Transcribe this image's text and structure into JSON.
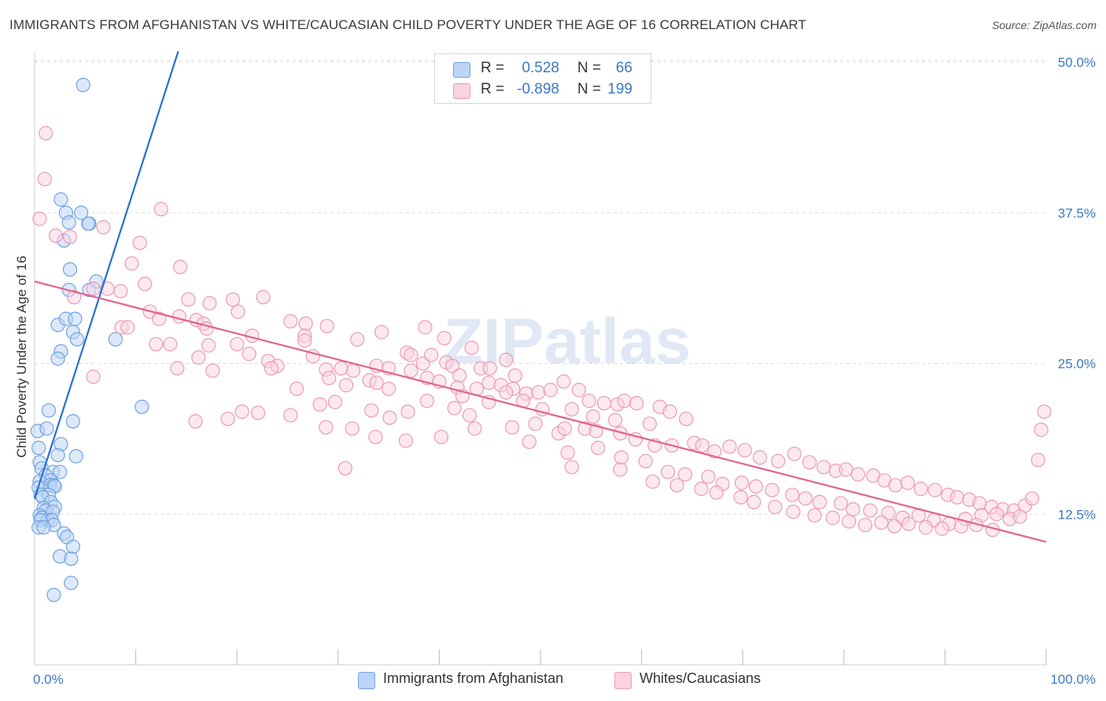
{
  "title": "IMMIGRANTS FROM AFGHANISTAN VS WHITE/CAUCASIAN CHILD POVERTY UNDER THE AGE OF 16 CORRELATION CHART",
  "source": "Source: ZipAtlas.com",
  "watermark": "ZIPatlas",
  "colors": {
    "blue": "#6fa3e3",
    "blue_fill": "#bcd4f5",
    "blue_line": "#2470d1",
    "pink": "#ec9ab5",
    "pink_fill": "#f9d3df",
    "pink_line": "#e2628f",
    "value_text": "#3b78c6",
    "grid": "#dddddd"
  },
  "stats": [
    {
      "r_label": "R =",
      "r_value": "0.528",
      "n_label": "N =",
      "n_value": "66",
      "series": "blue"
    },
    {
      "r_label": "R =",
      "r_value": "-0.898",
      "n_label": "N =",
      "n_value": "199",
      "series": "pink"
    }
  ],
  "legend": [
    {
      "label": "Immigrants from Afghanistan",
      "series": "blue"
    },
    {
      "label": "Whites/Caucasians",
      "series": "pink"
    }
  ],
  "chart_data": {
    "type": "scatter",
    "xlabel": "",
    "ylabel": "Child Poverty Under the Age of 16",
    "xlim": [
      0,
      100
    ],
    "ylim": [
      0,
      52
    ],
    "x_tick_labels": [
      {
        "value": 0,
        "label": "0.0%"
      },
      {
        "value": 100,
        "label": "100.0%"
      }
    ],
    "x_minor_ticks": [
      10,
      20,
      30,
      40,
      50,
      60,
      70,
      80,
      90,
      100
    ],
    "y_ticks": [
      {
        "value": 12.5,
        "label": "12.5%"
      },
      {
        "value": 25.0,
        "label": "25.0%"
      },
      {
        "value": 37.5,
        "label": "37.5%"
      },
      {
        "value": 50.0,
        "label": "50.0%"
      }
    ],
    "grid": true,
    "legend_position": "bottom",
    "series": [
      {
        "name": "Immigrants from Afghanistan",
        "color": "blue",
        "trend": {
          "x": [
            0,
            14.2
          ],
          "y": [
            13.8,
            50.9
          ]
        },
        "points": [
          [
            4.8,
            48.1
          ],
          [
            2.6,
            38.6
          ],
          [
            3.1,
            37.5
          ],
          [
            4.6,
            37.5
          ],
          [
            5.4,
            36.6
          ],
          [
            3.4,
            36.7
          ],
          [
            5.3,
            36.6
          ],
          [
            2.9,
            35.2
          ],
          [
            3.5,
            32.8
          ],
          [
            6.1,
            31.8
          ],
          [
            5.4,
            31.1
          ],
          [
            3.4,
            31.1
          ],
          [
            2.3,
            28.2
          ],
          [
            3.1,
            28.7
          ],
          [
            3.8,
            27.6
          ],
          [
            4.0,
            28.7
          ],
          [
            4.2,
            27.0
          ],
          [
            8.0,
            27.0
          ],
          [
            2.6,
            26.0
          ],
          [
            2.3,
            25.4
          ],
          [
            1.4,
            21.1
          ],
          [
            10.6,
            21.4
          ],
          [
            3.8,
            20.2
          ],
          [
            0.3,
            19.4
          ],
          [
            1.2,
            19.6
          ],
          [
            2.6,
            18.3
          ],
          [
            0.4,
            18.0
          ],
          [
            2.3,
            17.4
          ],
          [
            4.1,
            17.3
          ],
          [
            0.5,
            16.8
          ],
          [
            0.7,
            16.3
          ],
          [
            1.8,
            16.0
          ],
          [
            2.5,
            16.0
          ],
          [
            1.1,
            15.7
          ],
          [
            1.6,
            15.3
          ],
          [
            0.5,
            15.2
          ],
          [
            1.5,
            14.9
          ],
          [
            1.9,
            14.9
          ],
          [
            2.0,
            14.8
          ],
          [
            0.4,
            14.7
          ],
          [
            0.6,
            14.1
          ],
          [
            1.4,
            14.1
          ],
          [
            0.8,
            13.9
          ],
          [
            1.6,
            13.5
          ],
          [
            0.9,
            13.0
          ],
          [
            2.0,
            13.1
          ],
          [
            1.1,
            12.8
          ],
          [
            1.8,
            12.7
          ],
          [
            0.5,
            12.4
          ],
          [
            0.7,
            12.2
          ],
          [
            1.3,
            12.0
          ],
          [
            1.7,
            12.0
          ],
          [
            0.6,
            12.0
          ],
          [
            1.9,
            11.6
          ],
          [
            0.4,
            11.4
          ],
          [
            0.9,
            11.4
          ],
          [
            2.9,
            10.9
          ],
          [
            3.2,
            10.6
          ],
          [
            3.8,
            9.8
          ],
          [
            2.5,
            9.0
          ],
          [
            3.6,
            8.8
          ],
          [
            3.6,
            6.8
          ],
          [
            1.9,
            5.8
          ]
        ]
      },
      {
        "name": "Whites/Caucasians",
        "color": "pink",
        "trend": {
          "x": [
            0,
            100
          ],
          "y": [
            31.8,
            10.2
          ]
        },
        "points": [
          [
            1.1,
            44.1
          ],
          [
            1.0,
            40.3
          ],
          [
            0.5,
            37.0
          ],
          [
            6.8,
            36.3
          ],
          [
            2.1,
            35.6
          ],
          [
            3.5,
            35.5
          ],
          [
            10.4,
            35.0
          ],
          [
            12.5,
            37.8
          ],
          [
            9.6,
            33.3
          ],
          [
            14.4,
            33.0
          ],
          [
            5.8,
            31.2
          ],
          [
            7.2,
            31.2
          ],
          [
            8.5,
            31.0
          ],
          [
            10.9,
            31.6
          ],
          [
            3.9,
            30.5
          ],
          [
            15.2,
            30.3
          ],
          [
            17.3,
            30.0
          ],
          [
            19.6,
            30.3
          ],
          [
            20.1,
            29.3
          ],
          [
            22.6,
            30.5
          ],
          [
            11.4,
            29.3
          ],
          [
            12.3,
            28.7
          ],
          [
            14.3,
            28.9
          ],
          [
            16.0,
            28.6
          ],
          [
            16.7,
            28.3
          ],
          [
            17.0,
            27.9
          ],
          [
            21.5,
            27.3
          ],
          [
            25.3,
            28.5
          ],
          [
            26.8,
            28.3
          ],
          [
            28.9,
            28.1
          ],
          [
            26.7,
            27.3
          ],
          [
            31.9,
            27.0
          ],
          [
            34.3,
            27.6
          ],
          [
            38.6,
            28.0
          ],
          [
            40.5,
            27.1
          ],
          [
            43.2,
            26.3
          ],
          [
            8.6,
            28.0
          ],
          [
            9.2,
            28.0
          ],
          [
            12.0,
            26.6
          ],
          [
            13.4,
            26.6
          ],
          [
            16.2,
            25.5
          ],
          [
            17.2,
            26.5
          ],
          [
            20.0,
            26.6
          ],
          [
            21.2,
            25.8
          ],
          [
            23.1,
            25.2
          ],
          [
            24.0,
            24.8
          ],
          [
            26.7,
            26.9
          ],
          [
            27.5,
            25.6
          ],
          [
            28.8,
            24.5
          ],
          [
            30.3,
            24.6
          ],
          [
            31.5,
            24.4
          ],
          [
            33.1,
            23.6
          ],
          [
            33.8,
            24.8
          ],
          [
            35.0,
            24.6
          ],
          [
            36.8,
            25.9
          ],
          [
            37.2,
            25.7
          ],
          [
            38.4,
            25.0
          ],
          [
            39.2,
            25.7
          ],
          [
            40.7,
            25.1
          ],
          [
            41.3,
            24.8
          ],
          [
            42.0,
            24.0
          ],
          [
            44.1,
            24.6
          ],
          [
            45.0,
            24.6
          ],
          [
            46.6,
            25.3
          ],
          [
            47.5,
            24.0
          ],
          [
            5.8,
            23.9
          ],
          [
            14.1,
            24.6
          ],
          [
            17.6,
            24.4
          ],
          [
            23.4,
            24.6
          ],
          [
            25.9,
            22.9
          ],
          [
            29.1,
            23.8
          ],
          [
            30.8,
            23.2
          ],
          [
            33.8,
            23.4
          ],
          [
            35.0,
            22.9
          ],
          [
            37.2,
            24.4
          ],
          [
            38.8,
            23.8
          ],
          [
            40.0,
            23.5
          ],
          [
            41.8,
            23.0
          ],
          [
            42.3,
            22.3
          ],
          [
            43.7,
            22.9
          ],
          [
            44.9,
            23.4
          ],
          [
            46.1,
            23.2
          ],
          [
            47.3,
            22.9
          ],
          [
            48.6,
            22.5
          ],
          [
            49.8,
            22.6
          ],
          [
            51.0,
            22.8
          ],
          [
            52.3,
            23.5
          ],
          [
            53.8,
            22.8
          ],
          [
            54.8,
            21.9
          ],
          [
            56.3,
            21.7
          ],
          [
            57.6,
            21.6
          ],
          [
            58.3,
            21.9
          ],
          [
            59.5,
            21.7
          ],
          [
            61.8,
            21.4
          ],
          [
            62.8,
            21.0
          ],
          [
            64.4,
            20.4
          ],
          [
            60.8,
            20.0
          ],
          [
            57.4,
            20.3
          ],
          [
            55.2,
            20.6
          ],
          [
            53.1,
            21.2
          ],
          [
            50.2,
            21.2
          ],
          [
            48.3,
            21.9
          ],
          [
            46.6,
            22.6
          ],
          [
            44.9,
            21.8
          ],
          [
            43.0,
            20.7
          ],
          [
            41.5,
            21.3
          ],
          [
            38.8,
            21.9
          ],
          [
            36.9,
            21.0
          ],
          [
            35.1,
            20.5
          ],
          [
            33.3,
            21.1
          ],
          [
            29.7,
            21.8
          ],
          [
            28.2,
            21.6
          ],
          [
            25.3,
            20.7
          ],
          [
            22.1,
            20.9
          ],
          [
            20.5,
            21.0
          ],
          [
            19.1,
            20.4
          ],
          [
            15.9,
            20.2
          ],
          [
            28.8,
            19.7
          ],
          [
            31.4,
            19.6
          ],
          [
            33.7,
            18.9
          ],
          [
            36.7,
            18.6
          ],
          [
            40.2,
            18.9
          ],
          [
            43.5,
            19.6
          ],
          [
            47.2,
            19.7
          ],
          [
            49.5,
            20.0
          ],
          [
            51.8,
            19.2
          ],
          [
            52.4,
            19.6
          ],
          [
            54.4,
            19.6
          ],
          [
            55.5,
            19.4
          ],
          [
            57.9,
            19.2
          ],
          [
            59.4,
            18.7
          ],
          [
            61.3,
            18.2
          ],
          [
            63.0,
            18.2
          ],
          [
            65.2,
            18.4
          ],
          [
            66.0,
            18.2
          ],
          [
            67.2,
            17.7
          ],
          [
            68.7,
            18.1
          ],
          [
            70.2,
            17.8
          ],
          [
            71.7,
            17.2
          ],
          [
            73.5,
            16.9
          ],
          [
            75.1,
            17.5
          ],
          [
            76.6,
            16.8
          ],
          [
            78.0,
            16.4
          ],
          [
            79.2,
            16.1
          ],
          [
            80.2,
            16.2
          ],
          [
            81.4,
            15.8
          ],
          [
            82.9,
            15.7
          ],
          [
            84.0,
            15.3
          ],
          [
            85.1,
            14.9
          ],
          [
            86.3,
            15.1
          ],
          [
            87.6,
            14.6
          ],
          [
            89.0,
            14.5
          ],
          [
            90.3,
            14.1
          ],
          [
            91.2,
            13.9
          ],
          [
            92.4,
            13.7
          ],
          [
            93.4,
            13.4
          ],
          [
            94.6,
            13.1
          ],
          [
            95.7,
            12.9
          ],
          [
            96.8,
            12.8
          ],
          [
            97.9,
            13.2
          ],
          [
            98.6,
            13.8
          ],
          [
            99.2,
            17.0
          ],
          [
            99.5,
            19.5
          ],
          [
            99.8,
            21.0
          ],
          [
            48.9,
            18.5
          ],
          [
            52.7,
            17.6
          ],
          [
            55.7,
            18.0
          ],
          [
            58.0,
            17.2
          ],
          [
            60.4,
            16.9
          ],
          [
            62.6,
            16.0
          ],
          [
            64.3,
            15.8
          ],
          [
            66.6,
            15.6
          ],
          [
            68.0,
            15.0
          ],
          [
            69.9,
            15.1
          ],
          [
            71.3,
            14.8
          ],
          [
            72.9,
            14.5
          ],
          [
            74.9,
            14.1
          ],
          [
            76.2,
            13.8
          ],
          [
            77.6,
            13.5
          ],
          [
            79.7,
            13.4
          ],
          [
            80.9,
            12.9
          ],
          [
            82.6,
            12.8
          ],
          [
            84.4,
            12.6
          ],
          [
            85.8,
            12.2
          ],
          [
            87.4,
            12.4
          ],
          [
            88.9,
            12.0
          ],
          [
            90.4,
            11.7
          ],
          [
            92.0,
            12.1
          ],
          [
            93.6,
            12.4
          ],
          [
            95.1,
            12.5
          ],
          [
            96.4,
            12.1
          ],
          [
            97.4,
            12.3
          ],
          [
            30.7,
            16.3
          ],
          [
            53.1,
            16.4
          ],
          [
            57.9,
            16.2
          ],
          [
            61.1,
            15.2
          ],
          [
            63.5,
            14.9
          ],
          [
            65.9,
            14.6
          ],
          [
            67.4,
            14.3
          ],
          [
            69.8,
            13.9
          ],
          [
            71.1,
            13.5
          ],
          [
            73.2,
            13.1
          ],
          [
            75.0,
            12.7
          ],
          [
            77.1,
            12.4
          ],
          [
            78.9,
            12.2
          ],
          [
            80.5,
            11.9
          ],
          [
            82.1,
            11.6
          ],
          [
            83.7,
            11.8
          ],
          [
            85.0,
            11.5
          ],
          [
            86.4,
            11.7
          ],
          [
            88.1,
            11.4
          ],
          [
            89.7,
            11.3
          ],
          [
            91.6,
            11.5
          ],
          [
            93.1,
            11.6
          ],
          [
            94.7,
            11.2
          ]
        ]
      }
    ]
  }
}
